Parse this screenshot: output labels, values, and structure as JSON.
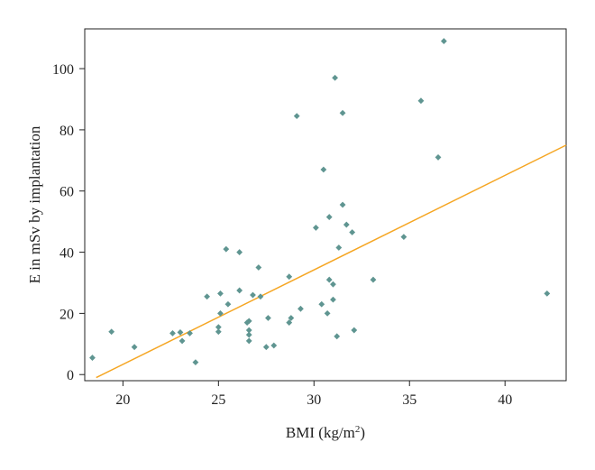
{
  "chart_data": {
    "type": "scatter",
    "title": "",
    "xlabel": "BMI (kg/m",
    "xlabel_superscript": "2",
    "xlabel_suffix": ")",
    "ylabel": "E in mSv by implantation",
    "xlim": [
      18,
      43.2
    ],
    "ylim": [
      -2,
      113
    ],
    "x_ticks": [
      20,
      25,
      30,
      35,
      40
    ],
    "y_ticks": [
      0,
      20,
      40,
      60,
      80,
      100
    ],
    "grid": false,
    "legend": "none",
    "point_color": "#5f9591",
    "line_color": "#f5a623",
    "points": [
      {
        "x": 18.4,
        "y": 5.5
      },
      {
        "x": 19.4,
        "y": 14
      },
      {
        "x": 20.6,
        "y": 9
      },
      {
        "x": 22.6,
        "y": 13.5
      },
      {
        "x": 23.0,
        "y": 13.8
      },
      {
        "x": 23.1,
        "y": 11
      },
      {
        "x": 23.5,
        "y": 13.5
      },
      {
        "x": 23.8,
        "y": 4
      },
      {
        "x": 24.4,
        "y": 25.5
      },
      {
        "x": 25.1,
        "y": 26.5
      },
      {
        "x": 25.1,
        "y": 20
      },
      {
        "x": 25.0,
        "y": 15.5
      },
      {
        "x": 25.0,
        "y": 14
      },
      {
        "x": 25.4,
        "y": 41
      },
      {
        "x": 25.5,
        "y": 23
      },
      {
        "x": 26.1,
        "y": 40
      },
      {
        "x": 26.1,
        "y": 27.5
      },
      {
        "x": 26.5,
        "y": 17
      },
      {
        "x": 26.6,
        "y": 17.5
      },
      {
        "x": 26.6,
        "y": 14.5
      },
      {
        "x": 26.6,
        "y": 13
      },
      {
        "x": 26.6,
        "y": 11
      },
      {
        "x": 26.8,
        "y": 26
      },
      {
        "x": 27.1,
        "y": 35
      },
      {
        "x": 27.2,
        "y": 25.5
      },
      {
        "x": 27.5,
        "y": 9
      },
      {
        "x": 27.6,
        "y": 18.5
      },
      {
        "x": 27.9,
        "y": 9.5
      },
      {
        "x": 28.7,
        "y": 32
      },
      {
        "x": 28.7,
        "y": 17
      },
      {
        "x": 28.8,
        "y": 18.5
      },
      {
        "x": 29.1,
        "y": 84.5
      },
      {
        "x": 29.3,
        "y": 21.5
      },
      {
        "x": 30.1,
        "y": 48
      },
      {
        "x": 30.4,
        "y": 23
      },
      {
        "x": 30.5,
        "y": 67
      },
      {
        "x": 30.7,
        "y": 20
      },
      {
        "x": 30.8,
        "y": 51.5
      },
      {
        "x": 30.8,
        "y": 31
      },
      {
        "x": 31.0,
        "y": 29.5
      },
      {
        "x": 31.0,
        "y": 24.5
      },
      {
        "x": 31.1,
        "y": 97
      },
      {
        "x": 31.2,
        "y": 12.5
      },
      {
        "x": 31.3,
        "y": 41.5
      },
      {
        "x": 31.5,
        "y": 85.5
      },
      {
        "x": 31.5,
        "y": 55.5
      },
      {
        "x": 31.7,
        "y": 49
      },
      {
        "x": 32.0,
        "y": 46.5
      },
      {
        "x": 32.1,
        "y": 14.5
      },
      {
        "x": 33.1,
        "y": 31
      },
      {
        "x": 34.7,
        "y": 45
      },
      {
        "x": 35.6,
        "y": 89.5
      },
      {
        "x": 36.5,
        "y": 71
      },
      {
        "x": 36.8,
        "y": 109
      },
      {
        "x": 42.2,
        "y": 26.5
      }
    ],
    "fit_line": {
      "x": [
        18.6,
        43.2
      ],
      "y": [
        -1,
        75
      ]
    }
  }
}
